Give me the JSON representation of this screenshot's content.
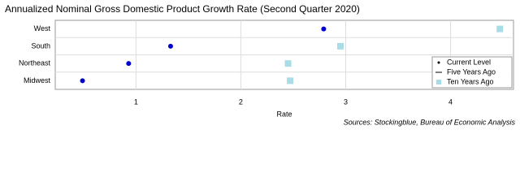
{
  "chart_data": {
    "type": "dot",
    "title": "Annualized Nominal Gross Domestic Product Growth Rate (Second Quarter 2020)",
    "x_label": "Rate",
    "source": "Sources: Stockingblue, Bureau of Economic Analysis",
    "categories": [
      "West",
      "South",
      "Northeast",
      "Midwest"
    ],
    "series": [
      {
        "name": "Current Level",
        "color": "#0000cc",
        "marker": "dot",
        "values": [
          2.79,
          1.33,
          0.93,
          0.49
        ]
      },
      {
        "name": "Five Years Ago",
        "color": "#000000",
        "marker": "line",
        "values": [
          null,
          null,
          null,
          null
        ]
      },
      {
        "name": "Ten Years Ago",
        "color": "#a8dce6",
        "marker": "square",
        "values": [
          4.47,
          2.95,
          2.45,
          2.47
        ]
      }
    ],
    "xlim": [
      0.23,
      4.6
    ],
    "xticks": [
      1,
      2,
      3,
      4
    ],
    "grid": true,
    "legend": "bottom-right"
  }
}
